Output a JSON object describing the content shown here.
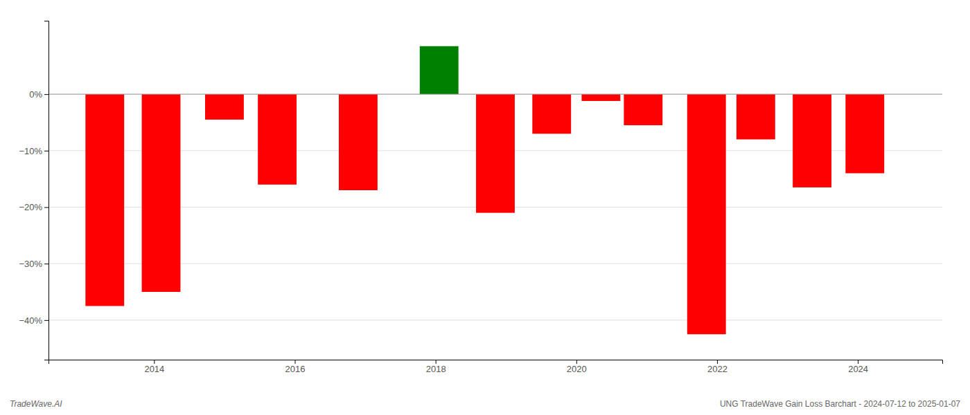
{
  "chart_data": {
    "type": "bar",
    "x": [
      2013.3,
      2014.1,
      2015.0,
      2015.75,
      2016.9,
      2018.05,
      2018.85,
      2019.65,
      2020.35,
      2020.95,
      2021.85,
      2022.55,
      2023.35,
      2024.1
    ],
    "values": [
      -37.5,
      -35.0,
      -4.5,
      -16.0,
      -17.0,
      8.5,
      -21.0,
      -7.0,
      -1.2,
      -5.5,
      -42.5,
      -8.0,
      -16.5,
      -14.0
    ],
    "colors": [
      "#ff0000",
      "#ff0000",
      "#ff0000",
      "#ff0000",
      "#ff0000",
      "#008000",
      "#ff0000",
      "#ff0000",
      "#ff0000",
      "#ff0000",
      "#ff0000",
      "#ff0000",
      "#ff0000",
      "#ff0000"
    ],
    "xlim": [
      2012.5,
      2025.2
    ],
    "xticks": [
      2014,
      2016,
      2018,
      2020,
      2022,
      2024
    ],
    "ylim": [
      -47,
      13
    ],
    "yticks": [
      {
        "value": 0,
        "label": "0%"
      },
      {
        "value": -10,
        "label": "−10%"
      },
      {
        "value": -20,
        "label": "−20%"
      },
      {
        "value": -30,
        "label": "−30%"
      },
      {
        "value": -40,
        "label": "−40%"
      }
    ],
    "grid": true,
    "annotations": [
      "TradeWave.AI",
      "UNG TradeWave Gain Loss Barchart - 2024-07-12 to 2025-01-07"
    ]
  }
}
